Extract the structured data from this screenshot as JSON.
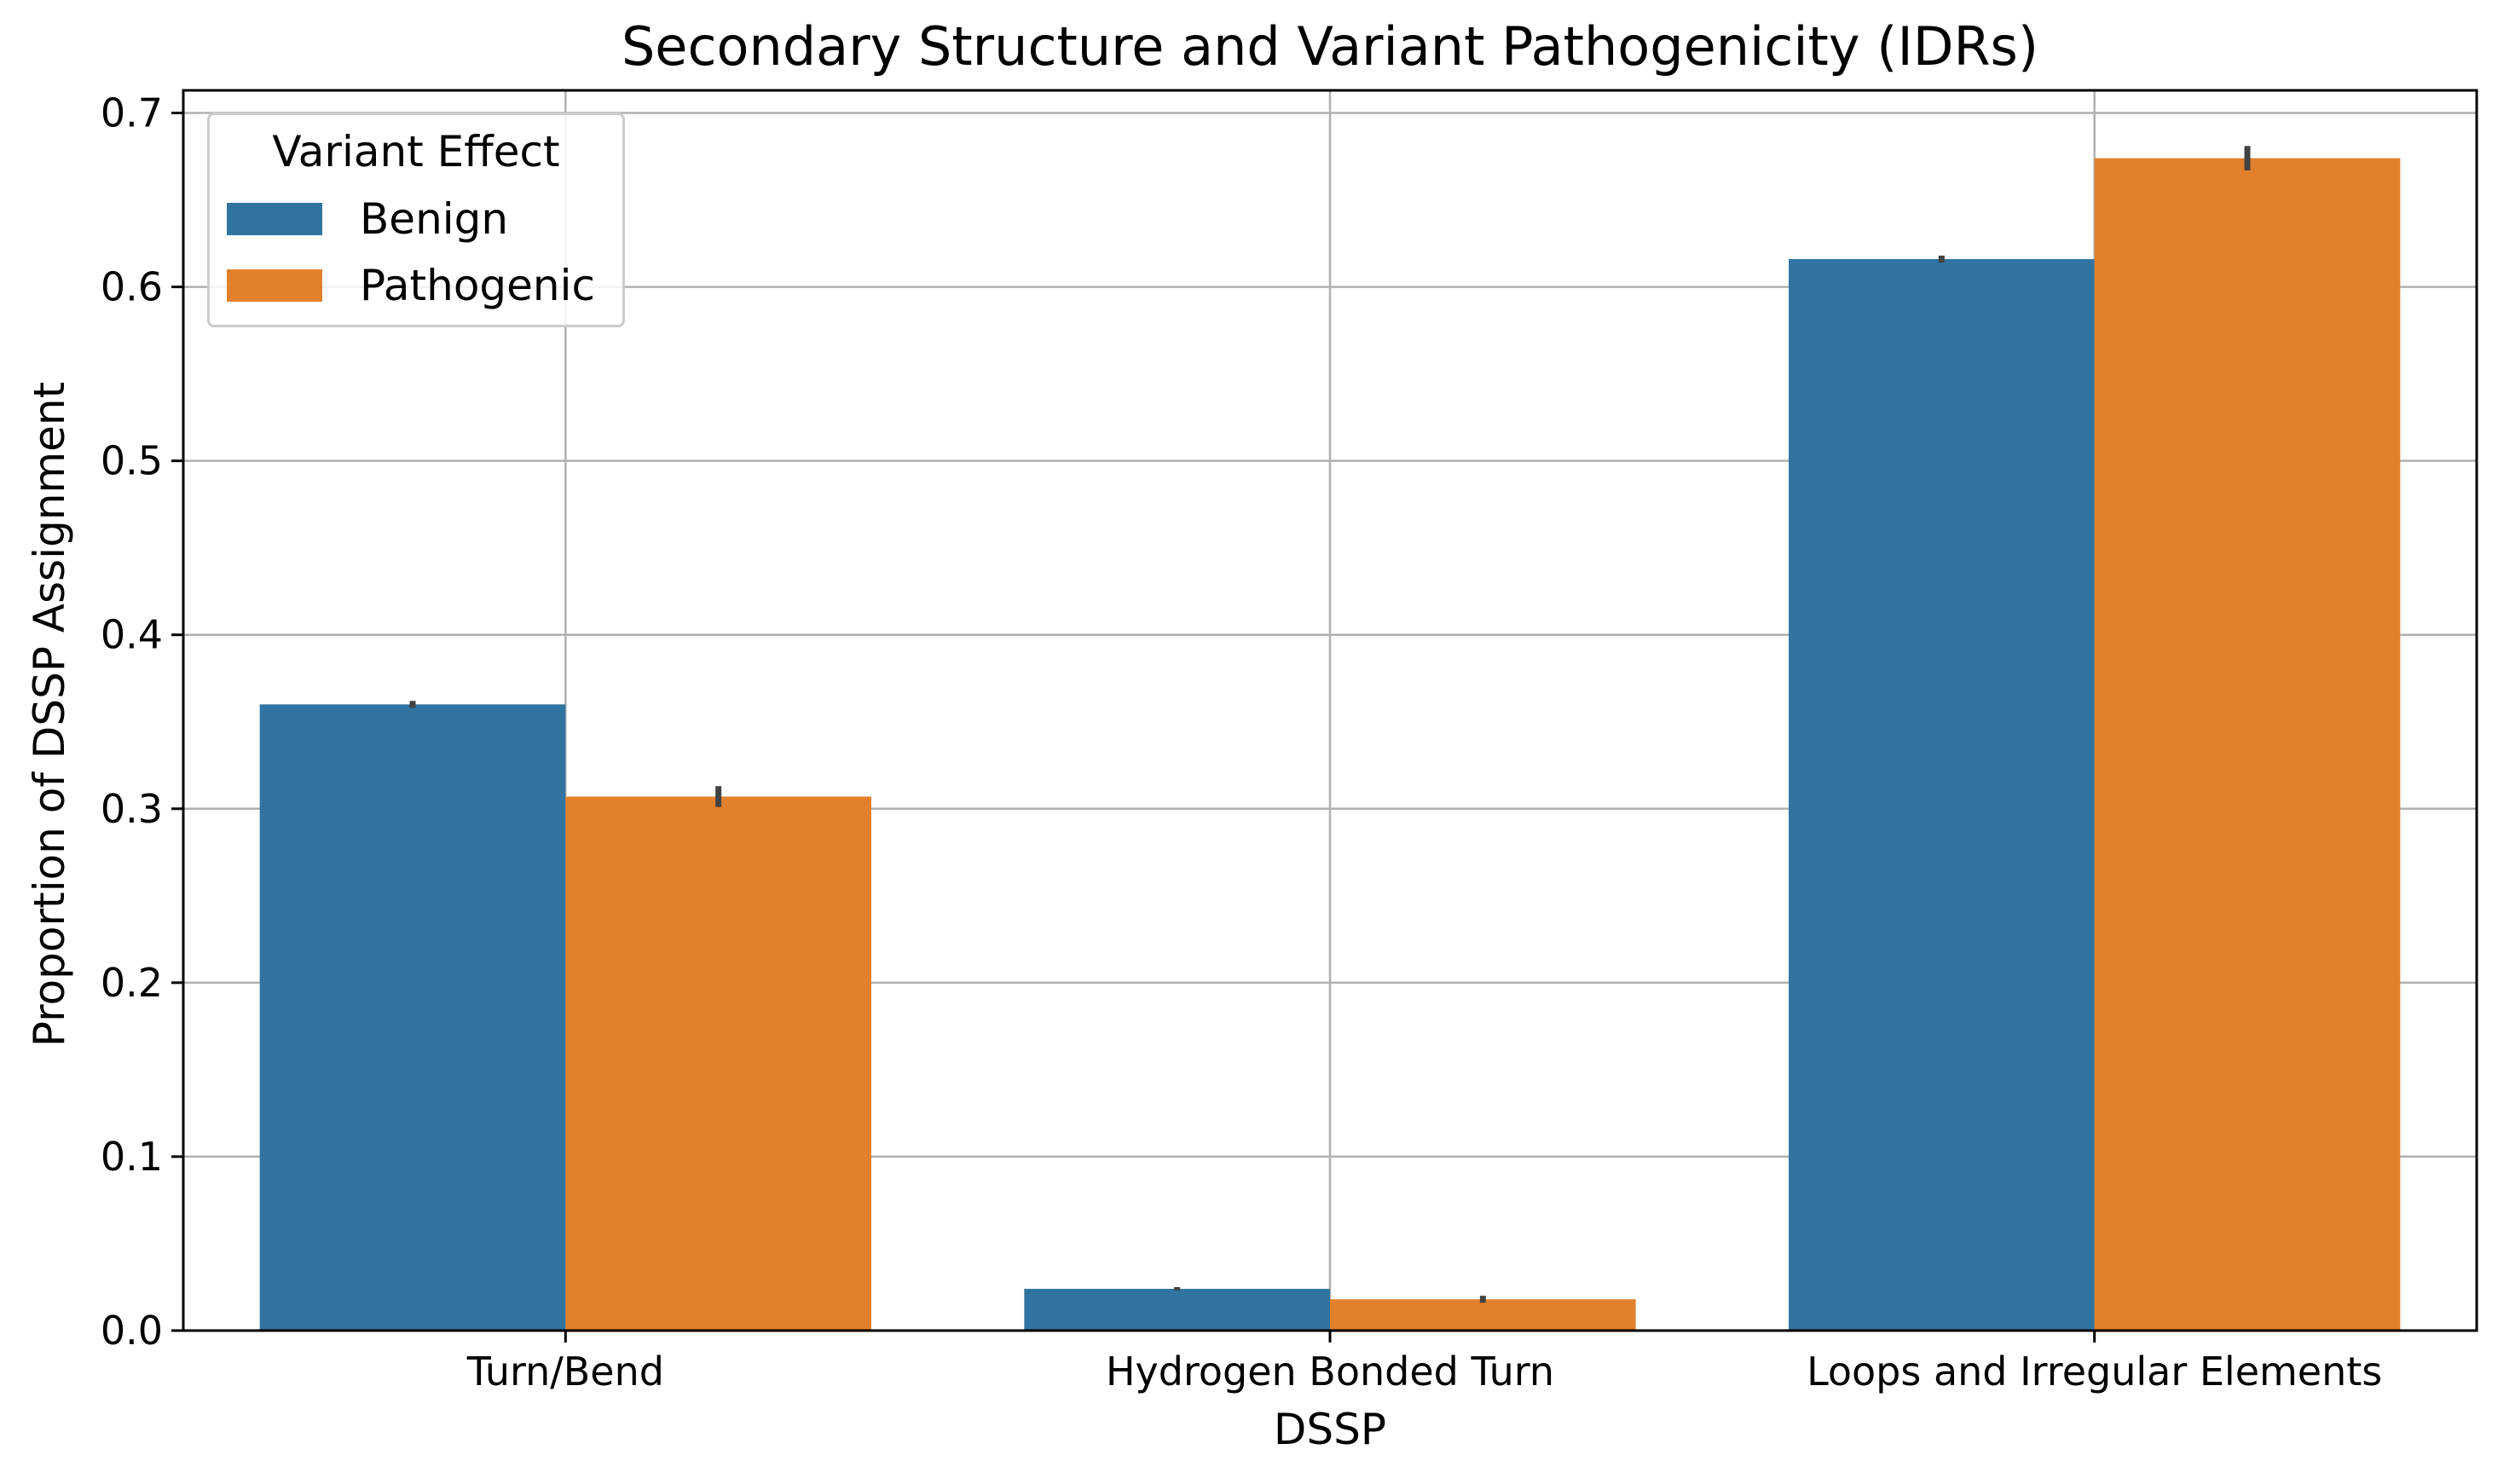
{
  "chart_data": {
    "type": "bar",
    "title": "Secondary Structure and Variant Pathogenicity (IDRs)",
    "xlabel": "DSSP",
    "ylabel": "Proportion of DSSP Assignment",
    "categories": [
      "Turn/Bend",
      "Hydrogen Bonded Turn",
      "Loops and Irregular Elements"
    ],
    "series": [
      {
        "name": "Benign",
        "color": "#3274a1",
        "values": [
          0.36,
          0.024,
          0.616
        ],
        "error": [
          0.002,
          0.001,
          0.002
        ]
      },
      {
        "name": "Pathogenic",
        "color": "#e1812c",
        "values": [
          0.307,
          0.018,
          0.674
        ],
        "error": [
          0.006,
          0.002,
          0.007
        ]
      }
    ],
    "ylim": [
      0,
      0.713
    ],
    "yticks": [
      0.0,
      0.1,
      0.2,
      0.3,
      0.4,
      0.5,
      0.6,
      0.7
    ],
    "ytick_labels": [
      "0.0",
      "0.1",
      "0.2",
      "0.3",
      "0.4",
      "0.5",
      "0.6",
      "0.7"
    ],
    "grid": true,
    "legend": {
      "title": "Variant Effect",
      "placement": "top-left"
    }
  }
}
